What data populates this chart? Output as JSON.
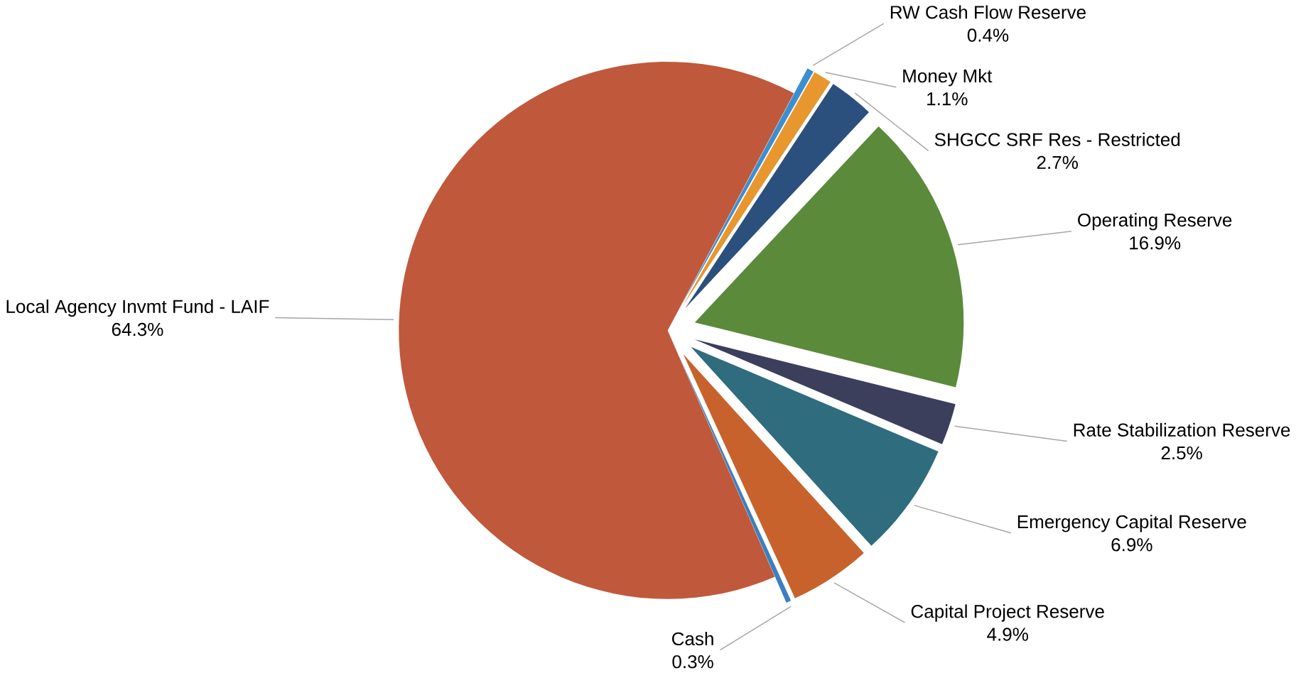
{
  "chart_data": {
    "type": "pie",
    "categories": [
      "RW Cash Flow  Reserve",
      "Money Mkt",
      "SHGCC SRF Res - Restricted",
      "Operating Reserve",
      "Rate Stabilization Reserve",
      "Emergency Capital Reserve",
      "Capital Project Reserve",
      "Cash",
      "Local Agency Invmt Fund - LAIF"
    ],
    "values": [
      0.4,
      1.1,
      2.7,
      16.9,
      2.5,
      6.9,
      4.9,
      0.3,
      64.3
    ],
    "value_labels": [
      "0.4%",
      "1.1%",
      "2.7%",
      "16.9%",
      "2.5%",
      "6.9%",
      "4.9%",
      "0.3%",
      "64.3%"
    ],
    "colors": [
      "#3b8fd0",
      "#e8962e",
      "#2c507e",
      "#5b8a3b",
      "#3b3f5c",
      "#2f6c7d",
      "#c8622c",
      "#3a80bf",
      "#c0583b"
    ]
  }
}
